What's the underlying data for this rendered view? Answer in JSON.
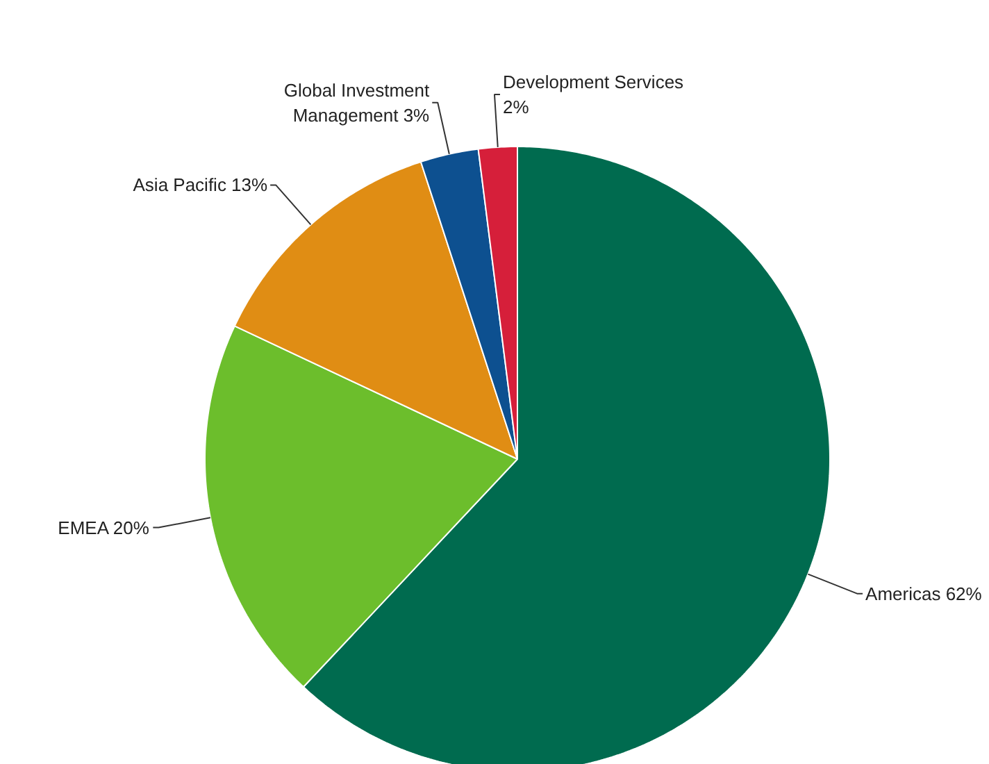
{
  "chart_data": {
    "type": "pie",
    "categories": [
      "Americas",
      "EMEA",
      "Asia Pacific",
      "Global Investment Management",
      "Development Services"
    ],
    "values": [
      62,
      20,
      13,
      3,
      2
    ],
    "value_labels": [
      "62%",
      "20%",
      "13%",
      "3%",
      "2%"
    ],
    "colors": [
      "#006b4f",
      "#6cbe2c",
      "#e08d14",
      "#0d5090",
      "#d61f3a"
    ]
  }
}
